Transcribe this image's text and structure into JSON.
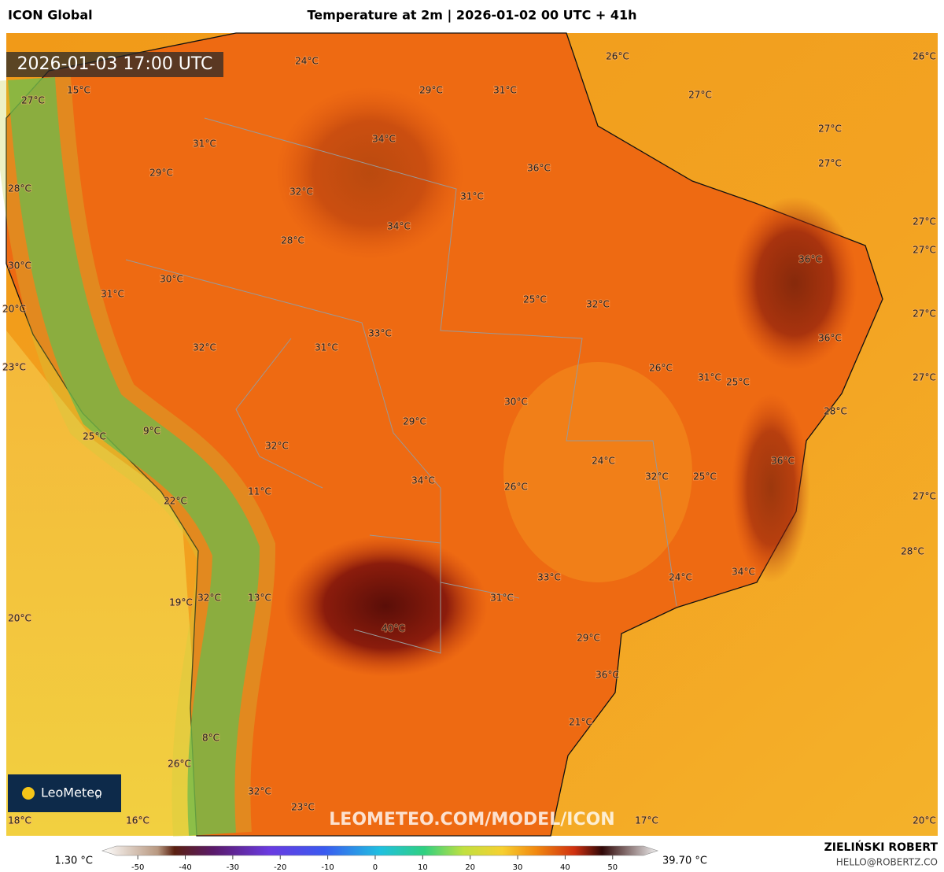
{
  "header": {
    "model": "ICON Global",
    "title": "Temperature at 2m | 2026-01-02 00 UTC + 41h",
    "valid_time": "2026-01-03 17:00 UTC"
  },
  "map": {
    "labels": [
      "24°C",
      "26°C",
      "26°C",
      "15°C",
      "27°C",
      "29°C",
      "31°C",
      "27°C",
      "27°C",
      "34°C",
      "31°C",
      "27°C",
      "36°C",
      "29°C",
      "28°C",
      "32°C",
      "31°C",
      "34°C",
      "27°C",
      "28°C",
      "27°C",
      "36°C",
      "30°C",
      "30°C",
      "31°C",
      "25°C",
      "32°C",
      "20°C",
      "27°C",
      "33°C",
      "36°C",
      "31°C",
      "32°C",
      "23°C",
      "26°C",
      "31°C",
      "25°C",
      "27°C",
      "30°C",
      "28°C",
      "29°C",
      "9°C",
      "25°C",
      "32°C",
      "24°C",
      "36°C",
      "32°C",
      "25°C",
      "34°C",
      "26°C",
      "11°C",
      "22°C",
      "27°C",
      "28°C",
      "34°C",
      "33°C",
      "24°C",
      "13°C",
      "32°C",
      "31°C",
      "19°C",
      "20°C",
      "40°C",
      "29°C",
      "36°C",
      "21°C",
      "8°C",
      "26°C",
      "32°C",
      "23°C",
      "18°C",
      "16°C",
      "17°C",
      "20°C"
    ],
    "watermark": "LEOMETEO.COM/MODEL/ICON",
    "logo": "LeoMeteo",
    "logo_suffix": "pl"
  },
  "colorbar": {
    "min_label": "1.30 °C",
    "max_label": "39.70 °C",
    "range": [
      -54.5,
      56.5
    ],
    "ticks": [
      -50,
      -40,
      -30,
      -20,
      -10,
      0,
      10,
      20,
      30,
      40,
      50
    ]
  },
  "footer": {
    "author": "ZIELIŃSKI ROBERT",
    "email": "HELLO@ROBERTZ.CO"
  }
}
